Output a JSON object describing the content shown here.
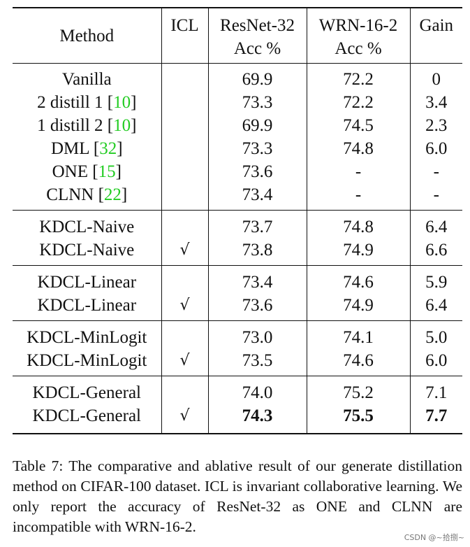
{
  "table": {
    "headers": {
      "method": "Method",
      "icl": "ICL",
      "r32_line1": "ResNet-32",
      "r32_line2": "Acc %",
      "wrn_line1": "WRN-16-2",
      "wrn_line2": "Acc %",
      "gain": "Gain"
    },
    "rows": [
      {
        "method": "Vanilla",
        "ref": "",
        "icl": "",
        "r32": "69.9",
        "wrn": "72.2",
        "gain": "0"
      },
      {
        "method": "2 distill 1",
        "ref": "10",
        "icl": "",
        "r32": "73.3",
        "wrn": "72.2",
        "gain": "3.4"
      },
      {
        "method": "1 distill 2",
        "ref": "10",
        "icl": "",
        "r32": "69.9",
        "wrn": "74.5",
        "gain": "2.3"
      },
      {
        "method": "DML",
        "ref": "32",
        "icl": "",
        "r32": "73.3",
        "wrn": "74.8",
        "gain": "6.0"
      },
      {
        "method": "ONE",
        "ref": "15",
        "icl": "",
        "r32": "73.6",
        "wrn": "-",
        "gain": "-"
      },
      {
        "method": "CLNN",
        "ref": "22",
        "icl": "",
        "r32": "73.4",
        "wrn": "-",
        "gain": "-"
      },
      {
        "method": "KDCL-Naive",
        "ref": "",
        "icl": "",
        "r32": "73.7",
        "wrn": "74.8",
        "gain": "6.4"
      },
      {
        "method": "KDCL-Naive",
        "ref": "",
        "icl": "√",
        "r32": "73.8",
        "wrn": "74.9",
        "gain": "6.6"
      },
      {
        "method": "KDCL-Linear",
        "ref": "",
        "icl": "",
        "r32": "73.4",
        "wrn": "74.6",
        "gain": "5.9"
      },
      {
        "method": "KDCL-Linear",
        "ref": "",
        "icl": "√",
        "r32": "73.6",
        "wrn": "74.9",
        "gain": "6.4"
      },
      {
        "method": "KDCL-MinLogit",
        "ref": "",
        "icl": "",
        "r32": "73.0",
        "wrn": "74.1",
        "gain": "5.0"
      },
      {
        "method": "KDCL-MinLogit",
        "ref": "",
        "icl": "√",
        "r32": "73.5",
        "wrn": "74.6",
        "gain": "6.0"
      },
      {
        "method": "KDCL-General",
        "ref": "",
        "icl": "",
        "r32": "74.0",
        "wrn": "75.2",
        "gain": "7.1"
      },
      {
        "method": "KDCL-General",
        "ref": "",
        "icl": "√",
        "r32": "74.3",
        "wrn": "75.5",
        "gain": "7.7"
      }
    ]
  },
  "caption": "Table 7: The comparative and ablative result of our generate distillation method on CIFAR-100 dataset. ICL is invariant collaborative learning. We only report the accuracy of ResNet-32 as ONE and CLNN are incompatible with WRN-16-2.",
  "watermark": "CSDN @~拾捌~"
}
